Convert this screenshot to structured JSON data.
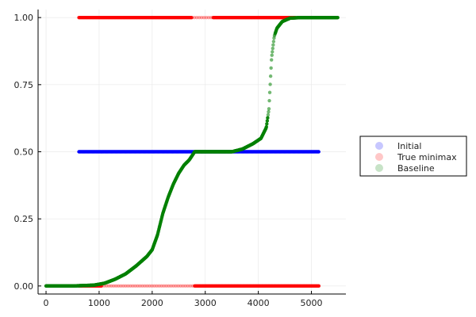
{
  "chart_data": {
    "type": "scatter",
    "title": "",
    "xlabel": "",
    "ylabel": "",
    "xlim": [
      -150,
      5650
    ],
    "ylim": [
      -0.03,
      1.03
    ],
    "x_ticks": [
      0,
      1000,
      2000,
      3000,
      4000,
      5000
    ],
    "x_tick_labels": [
      "0",
      "1000",
      "2000",
      "3000",
      "4000",
      "5000"
    ],
    "y_ticks": [
      0,
      0.25,
      0.5,
      0.75,
      1.0
    ],
    "y_tick_labels": [
      "0.00",
      "0.25",
      "0.50",
      "0.75",
      "1.00"
    ],
    "grid": true,
    "legend_position": "right",
    "series": [
      {
        "name": "Initial",
        "color": "#0000ff",
        "style": "constant",
        "x_range": [
          620,
          5150
        ],
        "y": 0.5
      },
      {
        "name": "True minimax",
        "color": "#ff0000",
        "style": "two-level",
        "upper": {
          "y": 1.0,
          "x_ranges": [
            [
              620,
              2750
            ],
            [
              2750,
              3150
            ],
            [
              3150,
              4700
            ]
          ]
        },
        "lower": {
          "y": 0.0,
          "x_ranges": [
            [
              620,
              1050
            ],
            [
              1050,
              2800
            ],
            [
              2800,
              5150
            ]
          ]
        }
      },
      {
        "name": "Baseline",
        "color": "#008000",
        "style": "curve",
        "points": [
          [
            0,
            0.0
          ],
          [
            500,
            0.0
          ],
          [
            900,
            0.003
          ],
          [
            1100,
            0.01
          ],
          [
            1300,
            0.025
          ],
          [
            1500,
            0.045
          ],
          [
            1700,
            0.075
          ],
          [
            1900,
            0.11
          ],
          [
            2000,
            0.135
          ],
          [
            2100,
            0.19
          ],
          [
            2200,
            0.27
          ],
          [
            2300,
            0.33
          ],
          [
            2400,
            0.38
          ],
          [
            2500,
            0.42
          ],
          [
            2600,
            0.45
          ],
          [
            2700,
            0.47
          ],
          [
            2800,
            0.5
          ],
          [
            3000,
            0.5
          ],
          [
            3300,
            0.5
          ],
          [
            3500,
            0.5
          ],
          [
            3700,
            0.51
          ],
          [
            3900,
            0.53
          ],
          [
            4050,
            0.55
          ],
          [
            4150,
            0.59
          ],
          [
            4200,
            0.66
          ],
          [
            4250,
            0.85
          ],
          [
            4300,
            0.93
          ],
          [
            4350,
            0.96
          ],
          [
            4450,
            0.985
          ],
          [
            4600,
            0.998
          ],
          [
            4800,
            1.0
          ],
          [
            5500,
            1.0
          ]
        ]
      }
    ]
  }
}
